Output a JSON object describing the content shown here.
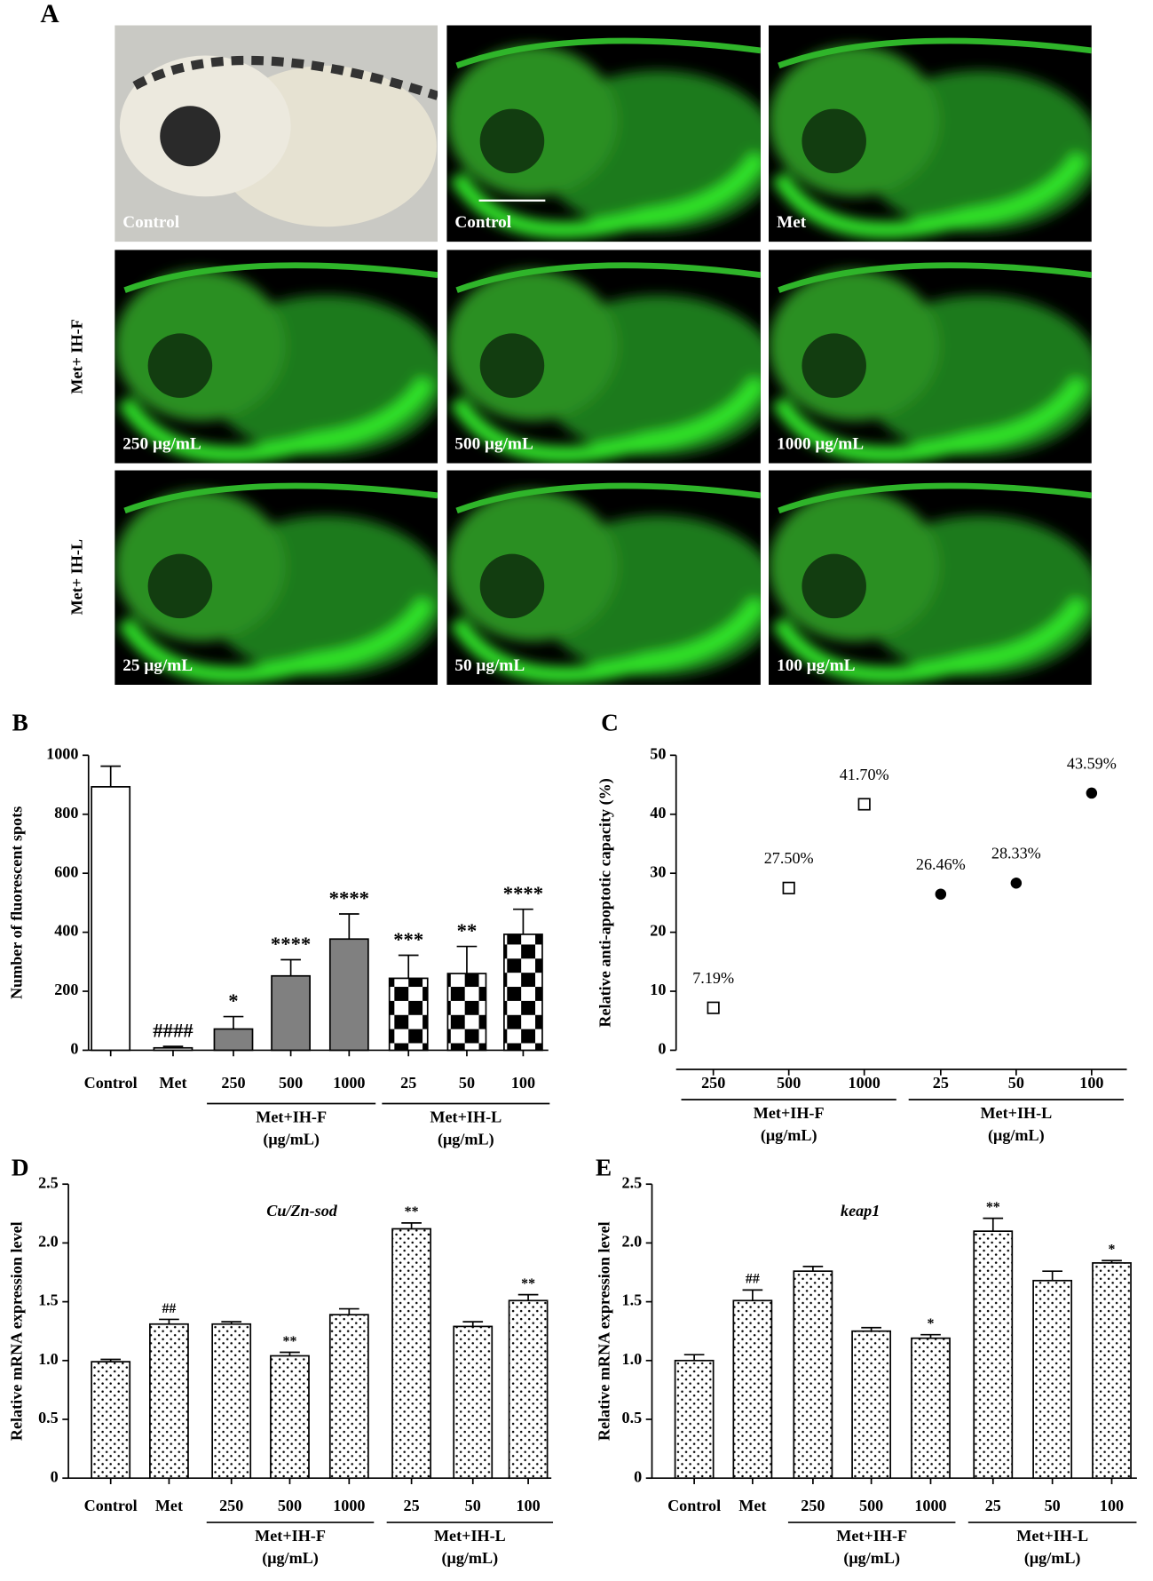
{
  "panel_a": {
    "panel": "A",
    "images": [
      {
        "label": "Control"
      },
      {
        "label": "Control"
      },
      {
        "label": "Met"
      },
      {
        "label": "250 μg/mL"
      },
      {
        "label": "500 μg/mL"
      },
      {
        "label": "1000 μg/mL"
      },
      {
        "label": "25 μg/mL"
      },
      {
        "label": "50 μg/mL"
      },
      {
        "label": "100 μg/mL"
      }
    ],
    "row_labels": [
      "Met+ IH-F",
      "Met+ IH-L"
    ]
  },
  "chart_data": [
    {
      "type": "bar",
      "panel": "B",
      "ylabel": "Number of fluorescent spots",
      "categories": [
        "Control",
        "Met",
        "250",
        "500",
        "1000",
        "25",
        "50",
        "100"
      ],
      "values": [
        893,
        8,
        72,
        252,
        377,
        244,
        260,
        393
      ],
      "errors": [
        70,
        5,
        42,
        55,
        85,
        78,
        92,
        85
      ],
      "annotations": [
        null,
        "####",
        "*",
        "****",
        "****",
        "***",
        "**",
        "****"
      ],
      "fills": [
        "#ffffff",
        "#ffffff",
        "#808080",
        "#808080",
        "#808080",
        "checker",
        "checker",
        "checker"
      ],
      "groups": [
        {
          "label": "Met+IH-F",
          "sublabel": "(μg/mL)",
          "span": [
            2,
            4
          ]
        },
        {
          "label": "Met+IH-L",
          "sublabel": "(μg/mL)",
          "span": [
            5,
            7
          ]
        }
      ],
      "ylim": [
        0,
        1000
      ],
      "yticks": [
        0,
        200,
        400,
        600,
        800,
        1000
      ]
    },
    {
      "type": "scatter",
      "panel": "C",
      "ylabel": "Relative anti-apoptotic capacity (%)",
      "categories": [
        "250",
        "500",
        "1000",
        "25",
        "50",
        "100"
      ],
      "series": [
        {
          "marker": "square",
          "color": "#000000",
          "values": [
            7.19,
            27.5,
            41.7,
            null,
            null,
            null
          ],
          "value_labels": [
            "7.19%",
            "27.50%",
            "41.70%",
            null,
            null,
            null
          ]
        },
        {
          "marker": "circle",
          "color": "#000000",
          "values": [
            null,
            null,
            null,
            26.46,
            28.33,
            43.59
          ],
          "value_labels": [
            null,
            null,
            null,
            "26.46%",
            "28.33%",
            "43.59%"
          ]
        }
      ],
      "groups": [
        {
          "label": "Met+IH-F",
          "sublabel": "(μg/mL)",
          "span": [
            0,
            2
          ]
        },
        {
          "label": "Met+IH-L",
          "sublabel": "(μg/mL)",
          "span": [
            3,
            5
          ]
        }
      ],
      "ylim": [
        0,
        50
      ],
      "yticks": [
        0,
        10,
        20,
        30,
        40,
        50
      ]
    },
    {
      "type": "bar",
      "panel": "D",
      "title": "Cu/Zn-sod",
      "ylabel": "Relative mRNA expression level",
      "categories": [
        "Control",
        "Met",
        "250",
        "500",
        "1000",
        "25",
        "50",
        "100"
      ],
      "values": [
        0.99,
        1.31,
        1.31,
        1.04,
        1.39,
        2.12,
        1.29,
        1.51
      ],
      "errors": [
        0.02,
        0.04,
        0.02,
        0.03,
        0.05,
        0.05,
        0.04,
        0.05
      ],
      "annotations": [
        null,
        "##",
        null,
        "**",
        null,
        "**",
        null,
        "**"
      ],
      "fill": "dots",
      "groups": [
        {
          "label": "Met+IH-F",
          "sublabel": "(μg/mL)",
          "span": [
            2,
            4
          ]
        },
        {
          "label": "Met+IH-L",
          "sublabel": "(μg/mL)",
          "span": [
            5,
            7
          ]
        }
      ],
      "ylim": [
        0,
        2.5
      ],
      "yticks": [
        0,
        0.5,
        {
          "value": 1,
          "label": "1.0"
        },
        1.5,
        {
          "value": 2,
          "label": "2.0"
        },
        2.5
      ]
    },
    {
      "type": "bar",
      "panel": "E",
      "title": "keap1",
      "ylabel": "Relative mRNA expression level",
      "categories": [
        "Control",
        "Met",
        "250",
        "500",
        "1000",
        "25",
        "50",
        "100"
      ],
      "values": [
        1.0,
        1.51,
        1.76,
        1.25,
        1.19,
        2.1,
        1.68,
        1.83
      ],
      "errors": [
        0.05,
        0.09,
        0.04,
        0.03,
        0.03,
        0.11,
        0.08,
        0.02
      ],
      "annotations": [
        null,
        "##",
        null,
        null,
        "*",
        "**",
        null,
        "*"
      ],
      "fill": "dots",
      "groups": [
        {
          "label": "Met+IH-F",
          "sublabel": "(μg/mL)",
          "span": [
            2,
            4
          ]
        },
        {
          "label": "Met+IH-L",
          "sublabel": "(μg/mL)",
          "span": [
            5,
            7
          ]
        }
      ],
      "ylim": [
        0,
        2.5
      ],
      "yticks": [
        0,
        0.5,
        {
          "value": 1,
          "label": "1.0"
        },
        1.5,
        {
          "value": 2,
          "label": "2.0"
        },
        2.5
      ]
    }
  ]
}
